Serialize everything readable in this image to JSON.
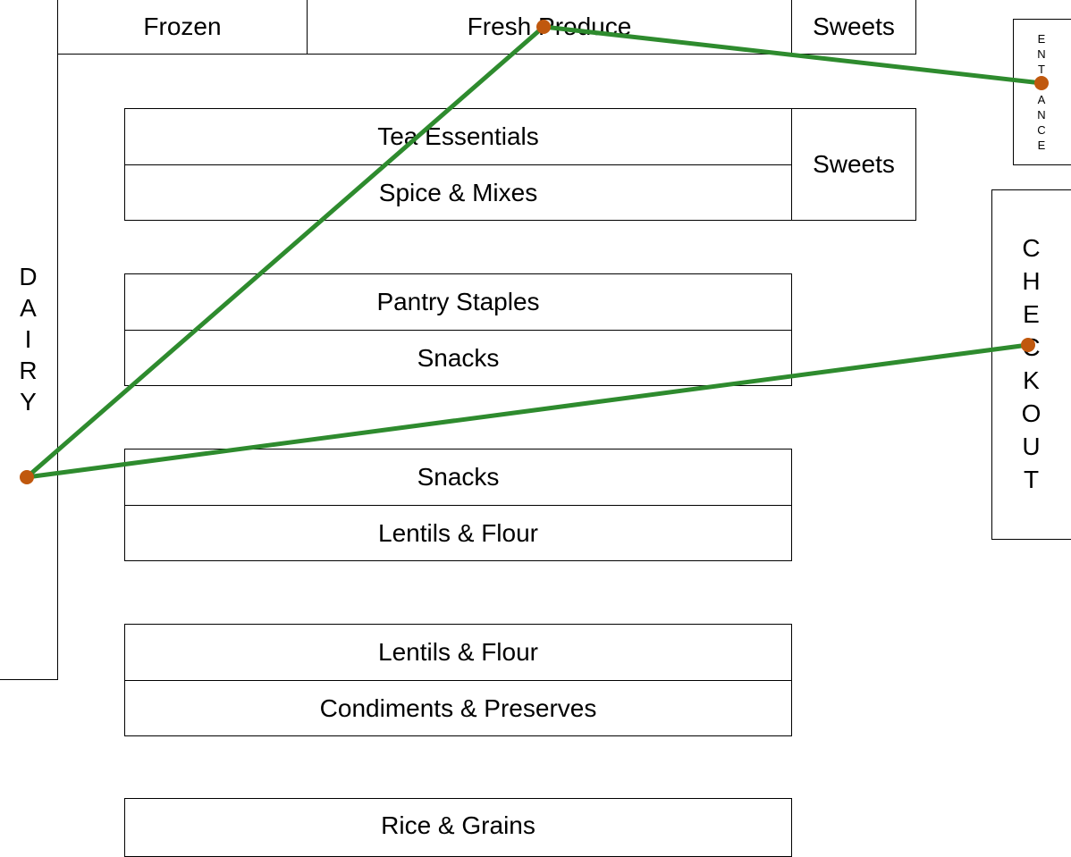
{
  "top_row": {
    "frozen": "Frozen",
    "fresh_produce": "Fresh Produce",
    "sweets": "Sweets"
  },
  "aisles": [
    {
      "top": "Tea Essentials",
      "bottom": "Spice & Mixes",
      "side": "Sweets"
    },
    {
      "top": "Pantry Staples",
      "bottom": "Snacks"
    },
    {
      "top": "Snacks",
      "bottom": "Lentils & Flour"
    },
    {
      "top": "Lentils & Flour",
      "bottom": "Condiments & Preserves"
    },
    {
      "top": "Rice & Grains"
    }
  ],
  "dairy": {
    "label": "DAIRY"
  },
  "entrance": {
    "label": "ENTRANCE"
  },
  "checkout": {
    "label": "CHECKOUT"
  },
  "route": {
    "stops": [
      "ENTRANCE",
      "Fresh Produce",
      "DAIRY",
      "CHECKOUT"
    ],
    "line_color": "#2e8b2e",
    "dot_color": "#c0580e"
  }
}
